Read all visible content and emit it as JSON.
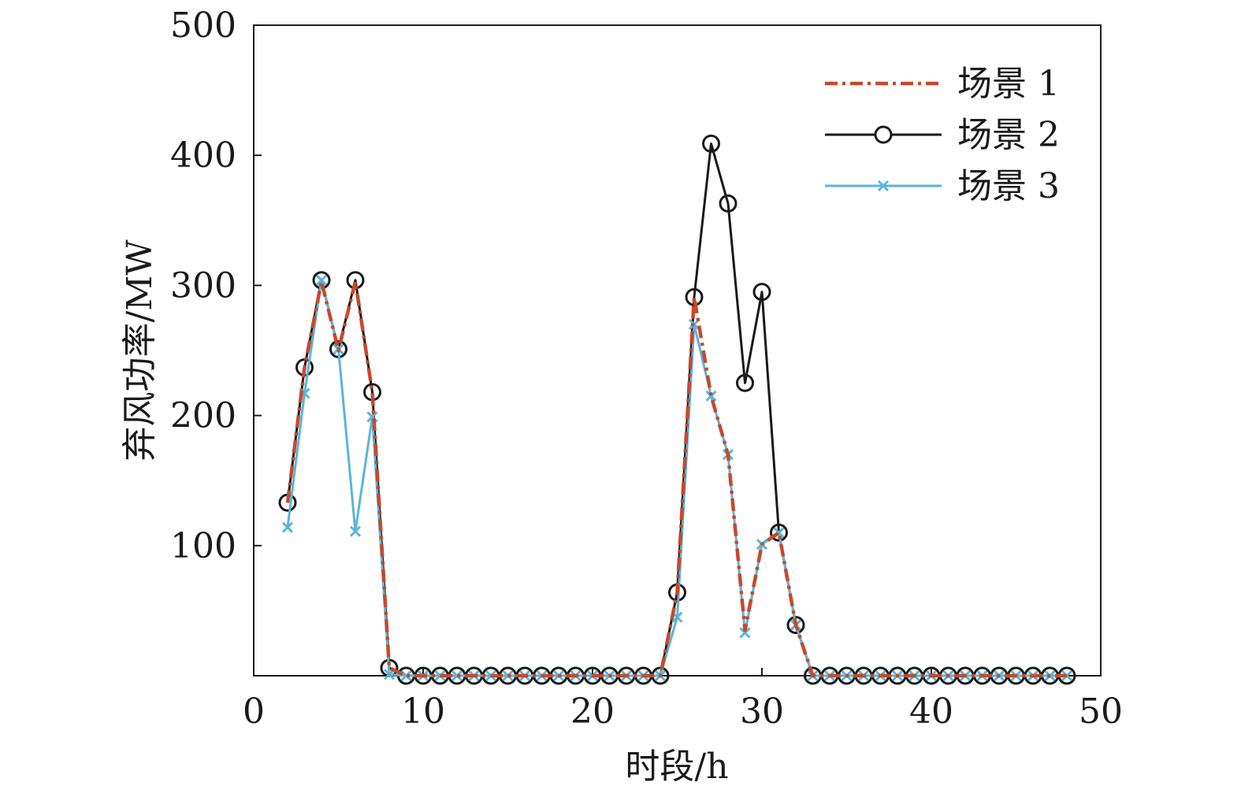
{
  "chart_data": {
    "type": "line",
    "xlabel": "时段/h",
    "ylabel": "弃风功率/MW",
    "xlim": [
      0,
      50
    ],
    "ylim": [
      0,
      500
    ],
    "xticks": [
      0,
      10,
      20,
      30,
      40,
      50
    ],
    "yticks": [
      100,
      200,
      300,
      400,
      500
    ],
    "grid": false,
    "legend_position": "top-right",
    "x": [
      2,
      3,
      4,
      5,
      6,
      7,
      8,
      9,
      10,
      11,
      12,
      13,
      14,
      15,
      16,
      17,
      18,
      19,
      20,
      21,
      22,
      23,
      24,
      25,
      26,
      27,
      28,
      29,
      30,
      31,
      32,
      33,
      34,
      35,
      36,
      37,
      38,
      39,
      40,
      41,
      42,
      43,
      44,
      45,
      46,
      47,
      48
    ],
    "series": [
      {
        "name": "场景 1",
        "color": "#c8482a",
        "style": "dash-dot",
        "marker": "none",
        "values": [
          133,
          237,
          303,
          250,
          303,
          218,
          6,
          0,
          0,
          0,
          0,
          0,
          0,
          0,
          0,
          0,
          0,
          0,
          0,
          0,
          0,
          0,
          0,
          64,
          291,
          215,
          170,
          35,
          101,
          110,
          39,
          0,
          0,
          0,
          0,
          0,
          0,
          0,
          0,
          0,
          0,
          0,
          0,
          0,
          0,
          0,
          0
        ]
      },
      {
        "name": "场景 2",
        "color": "#1a1a1a",
        "style": "solid",
        "marker": "circle",
        "values": [
          133,
          237,
          304,
          251,
          304,
          218,
          6,
          0,
          0,
          0,
          0,
          0,
          0,
          0,
          0,
          0,
          0,
          0,
          0,
          0,
          0,
          0,
          0,
          64,
          291,
          409,
          363,
          225,
          295,
          110,
          39,
          0,
          0,
          0,
          0,
          0,
          0,
          0,
          0,
          0,
          0,
          0,
          0,
          0,
          0,
          0,
          0
        ]
      },
      {
        "name": "场景 3",
        "color": "#5bb5d9",
        "style": "solid",
        "marker": "x",
        "values": [
          114,
          217,
          304,
          251,
          111,
          199,
          1,
          0,
          0,
          0,
          0,
          0,
          0,
          0,
          0,
          0,
          0,
          0,
          0,
          0,
          0,
          0,
          0,
          45,
          270,
          215,
          170,
          33,
          101,
          110,
          39,
          0,
          0,
          0,
          0,
          0,
          0,
          0,
          0,
          0,
          0,
          0,
          0,
          0,
          0,
          0,
          0
        ]
      }
    ]
  }
}
